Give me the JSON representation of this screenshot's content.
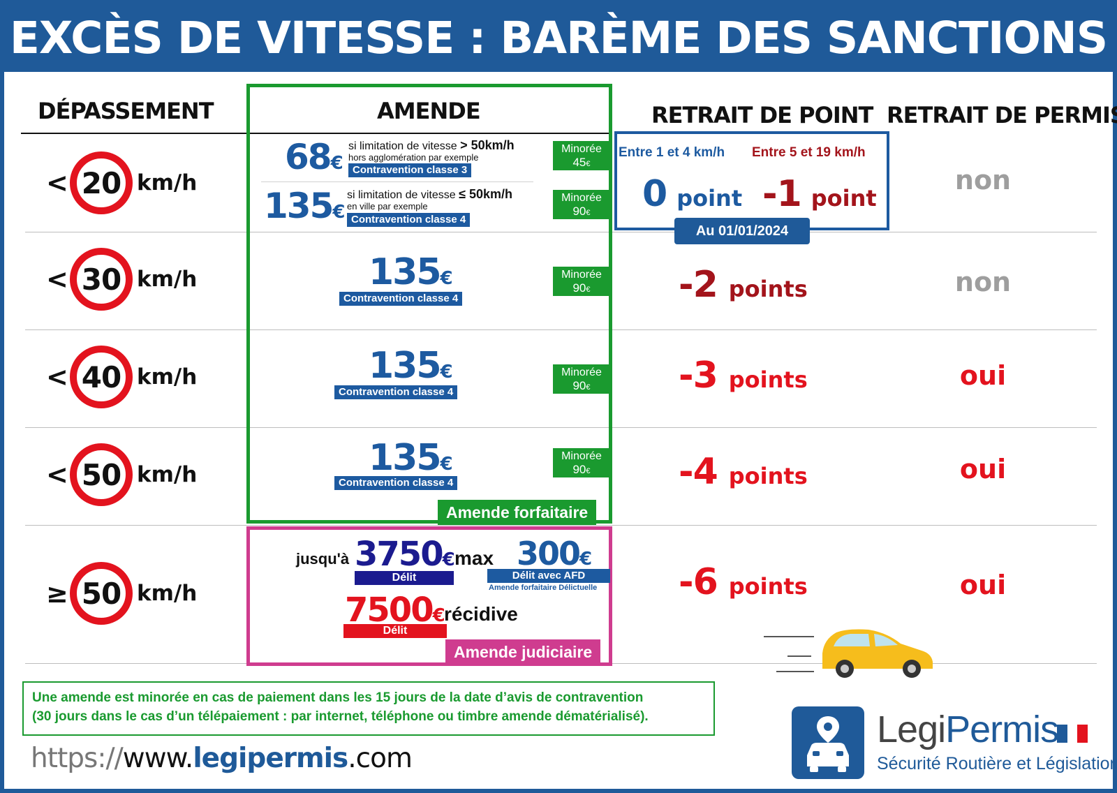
{
  "title": "EXCÈS DE VITESSE : BARÈME DES SANCTIONS",
  "headers": {
    "depassement": "DÉPASSEMENT",
    "amende": "AMENDE",
    "retrait_point": "RETRAIT DE POINT",
    "retrait_permis": "RETRAIT DE PERMIS"
  },
  "rows": [
    {
      "symbol": "<",
      "speed": "20",
      "unit": "km/h",
      "permis": "non",
      "permis_color": "#9e9e9e"
    },
    {
      "symbol": "<",
      "speed": "30",
      "unit": "km/h",
      "points_value": "-2",
      "points_word": "points",
      "permis": "non",
      "permis_color": "#9e9e9e"
    },
    {
      "symbol": "<",
      "speed": "40",
      "unit": "km/h",
      "points_value": "-3",
      "points_word": "points",
      "permis": "oui",
      "permis_color": "#e3131e"
    },
    {
      "symbol": "<",
      "speed": "50",
      "unit": "km/h",
      "points_value": "-4",
      "points_word": "points",
      "permis": "oui",
      "permis_color": "#e3131e"
    },
    {
      "symbol": "≥",
      "speed": "50",
      "unit": "km/h",
      "points_value": "-6",
      "points_word": "points",
      "permis": "oui",
      "permis_color": "#e3131e"
    }
  ],
  "row1_amende": {
    "a": {
      "price": "68",
      "currency": "€",
      "line1_prefix": "si limitation de vitesse ",
      "line1_bold": "> 50km/h",
      "line2": "hors agglomération par exemple",
      "tag": "Contravention classe 3",
      "minoree_label": "Minorée",
      "minoree_value": "45",
      "minoree_currency": "€"
    },
    "b": {
      "price": "135",
      "currency": "€",
      "line1_prefix": "si limitation de vitesse ",
      "line1_bold": "≤ 50km/h",
      "line2": "en ville par exemple",
      "tag": "Contravention classe 4",
      "minoree_label": "Minorée",
      "minoree_value": "90",
      "minoree_currency": "€"
    }
  },
  "amendes_simple": [
    {
      "price": "135",
      "currency": "€",
      "tag": "Contravention classe 4",
      "minoree_label": "Minorée",
      "minoree_value": "90",
      "minoree_currency": "€"
    },
    {
      "price": "135",
      "currency": "€",
      "tag": "Contravention classe 4",
      "minoree_label": "Minorée",
      "minoree_value": "90",
      "minoree_currency": "€"
    },
    {
      "price": "135",
      "currency": "€",
      "tag": "Contravention classe 4",
      "minoree_label": "Minorée",
      "minoree_value": "90",
      "minoree_currency": "€"
    }
  ],
  "amende_forfaitaire_label": "Amende forfaitaire",
  "judiciaire": {
    "prefix": "jusqu'à",
    "price1": "3750",
    "currency": "€",
    "max": "max",
    "tag1": "Délit",
    "price2": "300",
    "tag2": "Délit avec AFD",
    "sub2": "Amende forfaitaire Délictuelle",
    "price3": "7500",
    "recidive": "récidive",
    "tag3": "Délit",
    "label": "Amende judiciaire"
  },
  "retrait_row1": {
    "left_range": "Entre 1 et 4 km/h",
    "left_value": "0",
    "left_word": "point",
    "right_range": "Entre 5 et 19 km/h",
    "right_value": "-1",
    "right_word": "point",
    "date_badge": "Au 01/01/2024"
  },
  "note": {
    "line1": "Une amende est minorée en cas de paiement dans les 15 jours de la date d’avis de contravention",
    "line2": "(30 jours dans le cas d’un télépaiement : par internet, téléphone ou timbre amende dématérialisé)."
  },
  "url": {
    "scheme": "https://",
    "www": "www.",
    "domain": "legipermis",
    "tld": ".com"
  },
  "logo": {
    "name_a": "Legi",
    "name_b": "Permis",
    "subtitle": "Sécurité Routière et Législation"
  },
  "colors": {
    "brand_blue": "#1f5a99",
    "red": "#e3131e",
    "dark_red": "#a3141b",
    "green": "#1a9a2f",
    "pink": "#cf3c8f",
    "navy": "#1b1b8f",
    "grey": "#9e9e9e"
  }
}
